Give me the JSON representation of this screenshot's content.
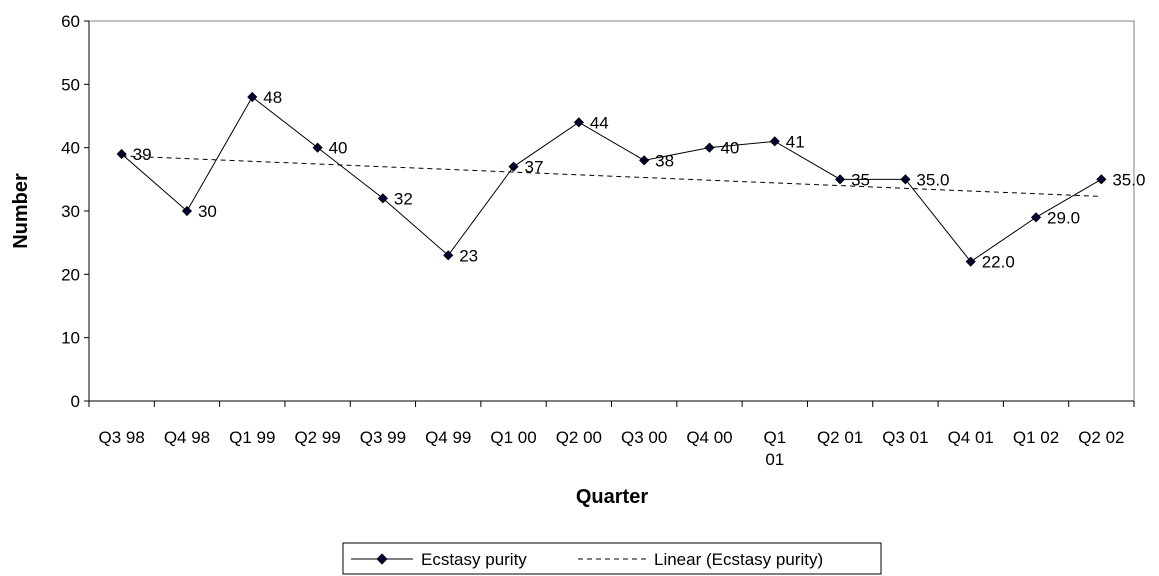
{
  "chart_data": {
    "type": "line",
    "xlabel": "Quarter",
    "ylabel": "Number",
    "ylim": [
      0,
      60
    ],
    "y_ticks": [
      "0",
      "10",
      "20",
      "30",
      "40",
      "50",
      "60"
    ],
    "grid": false,
    "categories": [
      "Q3 98",
      "Q4 98",
      "Q1 99",
      "Q2 99",
      "Q3 99",
      "Q4 99",
      "Q1 00",
      "Q2 00",
      "Q3 00",
      "Q4 00",
      "Q1 01",
      "Q2 01",
      "Q3 01",
      "Q4 01",
      "Q1 02",
      "Q2 02"
    ],
    "series": [
      {
        "name": "Ecstasy purity",
        "values": [
          39,
          30,
          48,
          40,
          32,
          23,
          37,
          44,
          38,
          40,
          41,
          35,
          35,
          22,
          29,
          35
        ],
        "labels": [
          "39",
          "30",
          "48",
          "40",
          "32",
          "23",
          "37",
          "44",
          "38",
          "40",
          "41",
          "35",
          "35.0",
          "22.0",
          "29.0",
          "35.0"
        ],
        "color": "#000000",
        "marker": "diamond"
      }
    ],
    "trendline": {
      "name": "Linear (Ecstasy purity)",
      "type": "linear",
      "style": "dashed",
      "color": "#000000"
    },
    "legend": {
      "position": "bottom",
      "entries": [
        "Ecstasy purity",
        "Linear (Ecstasy purity)"
      ]
    }
  }
}
